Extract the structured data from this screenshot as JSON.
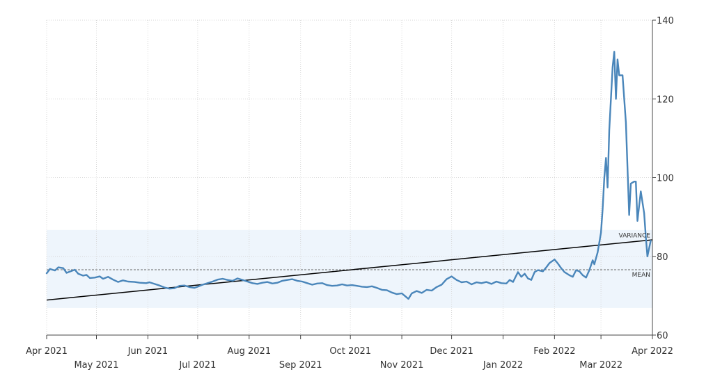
{
  "chart_data": {
    "type": "line",
    "title": "",
    "xlabel": "",
    "ylabel": "",
    "ylim": [
      60,
      140
    ],
    "xlim": [
      "2021-04-01",
      "2022-04-01"
    ],
    "grid": true,
    "y_axis_side": "right",
    "y_ticks": [
      60,
      80,
      100,
      120,
      140
    ],
    "x_ticks": [
      {
        "date": "2021-04-01",
        "label": "Apr 2021",
        "row": 1
      },
      {
        "date": "2021-05-01",
        "label": "May 2021",
        "row": 2
      },
      {
        "date": "2021-06-01",
        "label": "Jun 2021",
        "row": 1
      },
      {
        "date": "2021-07-01",
        "label": "Jul 2021",
        "row": 2
      },
      {
        "date": "2021-08-01",
        "label": "Aug 2021",
        "row": 1
      },
      {
        "date": "2021-09-01",
        "label": "Sep 2021",
        "row": 2
      },
      {
        "date": "2021-10-01",
        "label": "Oct 2021",
        "row": 1
      },
      {
        "date": "2021-11-01",
        "label": "Nov 2021",
        "row": 2
      },
      {
        "date": "2021-12-01",
        "label": "Dec 2021",
        "row": 1
      },
      {
        "date": "2022-01-01",
        "label": "Jan 2022",
        "row": 2
      },
      {
        "date": "2022-02-01",
        "label": "Feb 2022",
        "row": 1
      },
      {
        "date": "2022-03-01",
        "label": "Mar 2022",
        "row": 2
      },
      {
        "date": "2022-04-01",
        "label": "Apr 2022",
        "row": 1
      }
    ],
    "series": [
      {
        "color": "#4a86ba",
        "points": [
          [
            "2021-04-01",
            75.7
          ],
          [
            "2021-04-03",
            76.8
          ],
          [
            "2021-04-06",
            76.4
          ],
          [
            "2021-04-08",
            77.2
          ],
          [
            "2021-04-11",
            77.0
          ],
          [
            "2021-04-13",
            75.8
          ],
          [
            "2021-04-16",
            76.3
          ],
          [
            "2021-04-18",
            76.6
          ],
          [
            "2021-04-20",
            75.6
          ],
          [
            "2021-04-23",
            75.1
          ],
          [
            "2021-04-25",
            75.3
          ],
          [
            "2021-04-27",
            74.5
          ],
          [
            "2021-04-30",
            74.6
          ],
          [
            "2021-05-03",
            74.9
          ],
          [
            "2021-05-05",
            74.3
          ],
          [
            "2021-05-08",
            74.8
          ],
          [
            "2021-05-11",
            74.1
          ],
          [
            "2021-05-14",
            73.5
          ],
          [
            "2021-05-17",
            73.9
          ],
          [
            "2021-05-20",
            73.6
          ],
          [
            "2021-05-24",
            73.5
          ],
          [
            "2021-05-27",
            73.3
          ],
          [
            "2021-05-31",
            73.2
          ],
          [
            "2021-06-02",
            73.4
          ],
          [
            "2021-06-05",
            73.0
          ],
          [
            "2021-06-08",
            72.6
          ],
          [
            "2021-06-11",
            72.1
          ],
          [
            "2021-06-14",
            71.8
          ],
          [
            "2021-06-17",
            71.9
          ],
          [
            "2021-06-20",
            72.5
          ],
          [
            "2021-06-23",
            72.6
          ],
          [
            "2021-06-26",
            72.2
          ],
          [
            "2021-06-29",
            72.0
          ],
          [
            "2021-07-01",
            72.3
          ],
          [
            "2021-07-04",
            72.8
          ],
          [
            "2021-07-07",
            73.2
          ],
          [
            "2021-07-10",
            73.6
          ],
          [
            "2021-07-13",
            74.1
          ],
          [
            "2021-07-16",
            74.3
          ],
          [
            "2021-07-19",
            74.0
          ],
          [
            "2021-07-22",
            73.8
          ],
          [
            "2021-07-25",
            74.4
          ],
          [
            "2021-07-28",
            74.0
          ],
          [
            "2021-07-31",
            73.6
          ],
          [
            "2021-08-03",
            73.2
          ],
          [
            "2021-08-06",
            73.0
          ],
          [
            "2021-08-09",
            73.3
          ],
          [
            "2021-08-12",
            73.5
          ],
          [
            "2021-08-15",
            73.1
          ],
          [
            "2021-08-18",
            73.3
          ],
          [
            "2021-08-21",
            73.8
          ],
          [
            "2021-08-24",
            74.0
          ],
          [
            "2021-08-27",
            74.2
          ],
          [
            "2021-08-30",
            73.8
          ],
          [
            "2021-09-02",
            73.6
          ],
          [
            "2021-09-05",
            73.2
          ],
          [
            "2021-09-08",
            72.8
          ],
          [
            "2021-09-11",
            73.1
          ],
          [
            "2021-09-14",
            73.2
          ],
          [
            "2021-09-17",
            72.7
          ],
          [
            "2021-09-20",
            72.5
          ],
          [
            "2021-09-23",
            72.6
          ],
          [
            "2021-09-26",
            72.9
          ],
          [
            "2021-09-29",
            72.6
          ],
          [
            "2021-10-02",
            72.7
          ],
          [
            "2021-10-05",
            72.5
          ],
          [
            "2021-10-08",
            72.3
          ],
          [
            "2021-10-11",
            72.2
          ],
          [
            "2021-10-14",
            72.4
          ],
          [
            "2021-10-17",
            72.0
          ],
          [
            "2021-10-20",
            71.5
          ],
          [
            "2021-10-23",
            71.4
          ],
          [
            "2021-10-26",
            70.8
          ],
          [
            "2021-10-29",
            70.4
          ],
          [
            "2021-11-01",
            70.6
          ],
          [
            "2021-11-03",
            69.9
          ],
          [
            "2021-11-05",
            69.2
          ],
          [
            "2021-11-07",
            70.6
          ],
          [
            "2021-11-10",
            71.2
          ],
          [
            "2021-11-13",
            70.7
          ],
          [
            "2021-11-16",
            71.5
          ],
          [
            "2021-11-19",
            71.3
          ],
          [
            "2021-11-22",
            72.2
          ],
          [
            "2021-11-25",
            72.8
          ],
          [
            "2021-11-28",
            74.2
          ],
          [
            "2021-12-01",
            74.9
          ],
          [
            "2021-12-04",
            74.0
          ],
          [
            "2021-12-07",
            73.4
          ],
          [
            "2021-12-10",
            73.6
          ],
          [
            "2021-12-13",
            72.9
          ],
          [
            "2021-12-16",
            73.4
          ],
          [
            "2021-12-19",
            73.2
          ],
          [
            "2021-12-22",
            73.5
          ],
          [
            "2021-12-25",
            73.0
          ],
          [
            "2021-12-28",
            73.6
          ],
          [
            "2021-12-31",
            73.2
          ],
          [
            "2022-01-03",
            73.1
          ],
          [
            "2022-01-05",
            74.0
          ],
          [
            "2022-01-07",
            73.5
          ],
          [
            "2022-01-10",
            76.0
          ],
          [
            "2022-01-12",
            74.8
          ],
          [
            "2022-01-14",
            75.6
          ],
          [
            "2022-01-16",
            74.4
          ],
          [
            "2022-01-18",
            74.0
          ],
          [
            "2022-01-20",
            76.0
          ],
          [
            "2022-01-22",
            76.5
          ],
          [
            "2022-01-25",
            76.2
          ],
          [
            "2022-01-27",
            77.2
          ],
          [
            "2022-01-29",
            78.3
          ],
          [
            "2022-02-01",
            79.2
          ],
          [
            "2022-02-03",
            78.2
          ],
          [
            "2022-02-05",
            77.0
          ],
          [
            "2022-02-07",
            76.0
          ],
          [
            "2022-02-10",
            75.2
          ],
          [
            "2022-02-12",
            74.8
          ],
          [
            "2022-02-14",
            76.5
          ],
          [
            "2022-02-16",
            76.2
          ],
          [
            "2022-02-18",
            75.2
          ],
          [
            "2022-02-20",
            74.6
          ],
          [
            "2022-02-22",
            76.5
          ],
          [
            "2022-02-24",
            79.0
          ],
          [
            "2022-02-25",
            78.0
          ],
          [
            "2022-02-27",
            81.0
          ],
          [
            "2022-02-28",
            83.5
          ],
          [
            "2022-03-01",
            86.0
          ],
          [
            "2022-03-02",
            92.0
          ],
          [
            "2022-03-03",
            100.0
          ],
          [
            "2022-03-04",
            105.0
          ],
          [
            "2022-03-05",
            97.5
          ],
          [
            "2022-03-06",
            112.0
          ],
          [
            "2022-03-07",
            120.0
          ],
          [
            "2022-03-08",
            128.0
          ],
          [
            "2022-03-09",
            132.0
          ],
          [
            "2022-03-10",
            120.0
          ],
          [
            "2022-03-11",
            130.0
          ],
          [
            "2022-03-12",
            126.0
          ],
          [
            "2022-03-14",
            126.0
          ],
          [
            "2022-03-16",
            114.0
          ],
          [
            "2022-03-18",
            90.5
          ],
          [
            "2022-03-19",
            98.5
          ],
          [
            "2022-03-21",
            99.0
          ],
          [
            "2022-03-22",
            99.0
          ],
          [
            "2022-03-23",
            89.0
          ],
          [
            "2022-03-25",
            96.5
          ],
          [
            "2022-03-27",
            91.0
          ],
          [
            "2022-03-28",
            85.0
          ],
          [
            "2022-03-29",
            80.0
          ],
          [
            "2022-03-31",
            84.0
          ]
        ]
      }
    ],
    "variance_band": [
      66.9,
      86.7
    ],
    "mean": 76.6,
    "trend_line": [
      [
        "2021-04-01",
        68.9
      ],
      [
        "2022-04-01",
        84.2
      ]
    ],
    "annotations": [
      {
        "text": "VARIANCE",
        "value": 84.8
      },
      {
        "text": "MEAN",
        "value": 74.8
      }
    ],
    "colors": {
      "line": "#4a86ba",
      "band": "#eef5fc",
      "trend": "#000000",
      "mean": "#666666",
      "grid": "#d7d7d7",
      "axis": "#444444"
    }
  }
}
